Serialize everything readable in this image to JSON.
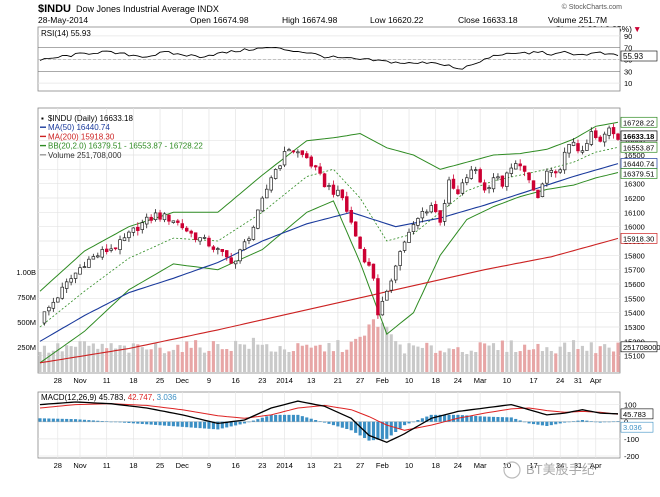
{
  "header": {
    "symbol": "$INDU",
    "name": "Dow Jones Industrial Average INDX",
    "watermark": "© StockCharts.com",
    "date": "28-May-2014",
    "open": "Open 16674.98",
    "high": "High 16674.98",
    "low": "Low 16620.22",
    "close": "Close 16633.18",
    "volume": "Volume 251.7M",
    "chg": "Chg -42.32 (-0.25%)",
    "chg_arrow": "▼"
  },
  "colors": {
    "up": "#222222",
    "down": "#cc0033",
    "ma50": "#1a3a9c",
    "ma200": "#cc2222",
    "bb": "#2e8b22",
    "macd_signal": "#dd2222",
    "hist": "#3b8fc4"
  },
  "chart_data": [
    {
      "type": "line",
      "title": "RSI(14) 55.93",
      "ylim": [
        0,
        100
      ],
      "ticks": [
        "90",
        "70",
        "50",
        "30",
        "10"
      ],
      "last_label": "55.93",
      "reference_lines": [
        30,
        70
      ],
      "x_range": [
        0,
        130
      ],
      "knots": [
        [
          0,
          48
        ],
        [
          5,
          55
        ],
        [
          10,
          60
        ],
        [
          14,
          63
        ],
        [
          20,
          58
        ],
        [
          24,
          55
        ],
        [
          28,
          62
        ],
        [
          32,
          58
        ],
        [
          36,
          55
        ],
        [
          40,
          60
        ],
        [
          44,
          64
        ],
        [
          48,
          68
        ],
        [
          52,
          70
        ],
        [
          56,
          66
        ],
        [
          60,
          62
        ],
        [
          64,
          55
        ],
        [
          68,
          52
        ],
        [
          72,
          50
        ],
        [
          76,
          48
        ],
        [
          80,
          45
        ],
        [
          84,
          43
        ],
        [
          88,
          46
        ],
        [
          92,
          40
        ],
        [
          94,
          32
        ],
        [
          96,
          38
        ],
        [
          98,
          42
        ],
        [
          100,
          50
        ],
        [
          102,
          56
        ],
        [
          104,
          60
        ],
        [
          106,
          58
        ],
        [
          108,
          62
        ],
        [
          110,
          60
        ],
        [
          112,
          64
        ],
        [
          114,
          60
        ],
        [
          116,
          58
        ],
        [
          118,
          62
        ],
        [
          120,
          60
        ],
        [
          122,
          58
        ],
        [
          124,
          60
        ],
        [
          126,
          61
        ],
        [
          128,
          58
        ],
        [
          130,
          56
        ]
      ]
    },
    {
      "type": "candlestick",
      "title": "$INDU (Daily) 16633.18",
      "ylim": [
        15000,
        16800
      ],
      "y_ticks": [
        15100,
        15200,
        15300,
        15400,
        15500,
        15600,
        15700,
        15800,
        15900,
        16000,
        16100,
        16200,
        16300,
        16400,
        16500,
        16600
      ],
      "y_tick_labels": [
        "15100",
        "15200",
        "15300",
        "15400",
        "15500",
        "15600",
        "15700",
        "15800",
        "15900",
        "16000",
        "16100",
        "16200",
        "16300",
        "16400",
        "16500",
        "16600"
      ],
      "x_range": [
        0,
        130
      ],
      "x_ticks": [
        [
          4,
          "28"
        ],
        [
          9,
          "Nov"
        ],
        [
          15,
          "11"
        ],
        [
          21,
          "18"
        ],
        [
          27,
          "25"
        ],
        [
          32,
          "Dec"
        ],
        [
          38,
          "9"
        ],
        [
          44,
          "16"
        ],
        [
          50,
          "23"
        ],
        [
          55,
          "2014"
        ],
        [
          61,
          "13"
        ],
        [
          67,
          "21"
        ],
        [
          72,
          "27"
        ],
        [
          77,
          "Feb"
        ],
        [
          83,
          "10"
        ],
        [
          89,
          "18"
        ],
        [
          94,
          "24"
        ],
        [
          99,
          "Mar"
        ],
        [
          105,
          "10"
        ],
        [
          111,
          "17"
        ],
        [
          117,
          "24"
        ],
        [
          121,
          "31"
        ],
        [
          125,
          "Apr"
        ]
      ],
      "legend": [
        {
          "label": "$INDU (Daily) 16633.18",
          "key": "up"
        },
        {
          "label": "MA(50) 16440.74",
          "key": "ma50"
        },
        {
          "label": "MA(200) 15918.30",
          "key": "ma200"
        },
        {
          "label": "BB(20,2.0) 16379.51 - 16553.87 - 16728.22",
          "key": "bb"
        },
        {
          "label": "Volume 251,708,000",
          "key": "vol"
        }
      ],
      "right_labels": [
        {
          "value": 16728.22,
          "text": "16728.22",
          "key": "bb"
        },
        {
          "value": 16633.18,
          "text": "16633.18",
          "key": "price"
        },
        {
          "value": 16553.87,
          "text": "16553.87",
          "key": "bb"
        },
        {
          "value": 16440.74,
          "text": "16440.74",
          "key": "ma50"
        },
        {
          "value": 16379.51,
          "text": "16379.51",
          "key": "bb"
        },
        {
          "value": 15918.3,
          "text": "15918.30",
          "key": "ma200"
        }
      ],
      "price_knots": [
        [
          0,
          15350
        ],
        [
          6,
          15600
        ],
        [
          10,
          15750
        ],
        [
          14,
          15820
        ],
        [
          18,
          15880
        ],
        [
          22,
          16000
        ],
        [
          26,
          16080
        ],
        [
          30,
          16050
        ],
        [
          34,
          15950
        ],
        [
          38,
          15880
        ],
        [
          42,
          15780
        ],
        [
          44,
          15760
        ],
        [
          48,
          16000
        ],
        [
          52,
          16350
        ],
        [
          56,
          16550
        ],
        [
          60,
          16480
        ],
        [
          64,
          16300
        ],
        [
          68,
          16200
        ],
        [
          72,
          15850
        ],
        [
          75,
          15650
        ],
        [
          76,
          15400
        ],
        [
          78,
          15520
        ],
        [
          80,
          15750
        ],
        [
          82,
          15900
        ],
        [
          86,
          16100
        ],
        [
          88,
          16150
        ],
        [
          90,
          16050
        ],
        [
          92,
          16300
        ],
        [
          94,
          16220
        ],
        [
          96,
          16350
        ],
        [
          98,
          16400
        ],
        [
          100,
          16250
        ],
        [
          102,
          16350
        ],
        [
          104,
          16300
        ],
        [
          106,
          16400
        ],
        [
          108,
          16450
        ],
        [
          110,
          16300
        ],
        [
          112,
          16200
        ],
        [
          114,
          16380
        ],
        [
          116,
          16350
        ],
        [
          118,
          16500
        ],
        [
          120,
          16600
        ],
        [
          122,
          16500
        ],
        [
          124,
          16650
        ],
        [
          126,
          16580
        ],
        [
          128,
          16700
        ],
        [
          130,
          16633
        ]
      ],
      "volume_left_labels": [
        "1.00B",
        "750M",
        "500M",
        "250M"
      ],
      "volume_axis_max": 1100,
      "volume_right_label": "251708000",
      "volume_millions_knots": [
        [
          0,
          220
        ],
        [
          10,
          260
        ],
        [
          20,
          230
        ],
        [
          30,
          250
        ],
        [
          40,
          260
        ],
        [
          48,
          280
        ],
        [
          52,
          240
        ],
        [
          60,
          230
        ],
        [
          68,
          260
        ],
        [
          72,
          300
        ],
        [
          75,
          480
        ],
        [
          76,
          560
        ],
        [
          78,
          380
        ],
        [
          82,
          240
        ],
        [
          90,
          230
        ],
        [
          100,
          240
        ],
        [
          106,
          260
        ],
        [
          110,
          240
        ],
        [
          118,
          250
        ],
        [
          122,
          260
        ],
        [
          126,
          240
        ],
        [
          130,
          250
        ]
      ],
      "ma50_knots": [
        [
          0,
          15200
        ],
        [
          10,
          15380
        ],
        [
          20,
          15540
        ],
        [
          30,
          15640
        ],
        [
          40,
          15750
        ],
        [
          50,
          15900
        ],
        [
          60,
          16020
        ],
        [
          70,
          16100
        ],
        [
          80,
          16000
        ],
        [
          90,
          16060
        ],
        [
          100,
          16150
        ],
        [
          110,
          16250
        ],
        [
          120,
          16350
        ],
        [
          130,
          16440
        ]
      ],
      "ma200_knots": [
        [
          0,
          15050
        ],
        [
          20,
          15150
        ],
        [
          40,
          15280
        ],
        [
          60,
          15420
        ],
        [
          80,
          15560
        ],
        [
          100,
          15700
        ],
        [
          115,
          15790
        ],
        [
          130,
          15918
        ]
      ],
      "bb_mid_knots": [
        [
          0,
          15300
        ],
        [
          10,
          15550
        ],
        [
          20,
          15780
        ],
        [
          30,
          15920
        ],
        [
          40,
          15900
        ],
        [
          50,
          16100
        ],
        [
          60,
          16350
        ],
        [
          66,
          16400
        ],
        [
          72,
          16200
        ],
        [
          78,
          15900
        ],
        [
          84,
          15950
        ],
        [
          90,
          16100
        ],
        [
          96,
          16250
        ],
        [
          102,
          16320
        ],
        [
          108,
          16360
        ],
        [
          114,
          16400
        ],
        [
          120,
          16450
        ],
        [
          125,
          16520
        ],
        [
          130,
          16553
        ]
      ],
      "bb_width_knots": [
        [
          0,
          250
        ],
        [
          10,
          280
        ],
        [
          20,
          220
        ],
        [
          30,
          180
        ],
        [
          40,
          200
        ],
        [
          50,
          260
        ],
        [
          60,
          250
        ],
        [
          66,
          220
        ],
        [
          72,
          450
        ],
        [
          78,
          650
        ],
        [
          84,
          550
        ],
        [
          90,
          300
        ],
        [
          96,
          200
        ],
        [
          102,
          180
        ],
        [
          108,
          150
        ],
        [
          114,
          140
        ],
        [
          120,
          160
        ],
        [
          125,
          180
        ],
        [
          130,
          175
        ]
      ]
    },
    {
      "type": "line",
      "title": "MACD(12,26,9) 45.783, 42.747, 3.036",
      "title_macd": "MACD(12,26,9) 45.783,",
      "title_signal": "42.747,",
      "title_hist": "3.036",
      "ylim": [
        -200,
        150
      ],
      "y_ticks": [
        100,
        0,
        -100,
        -200
      ],
      "y_tick_labels": [
        "100",
        "0",
        "-100",
        "-200"
      ],
      "right_labels": [
        {
          "value": 45.783,
          "text": "45.783",
          "key": "macd"
        },
        {
          "value": 3.036,
          "text": "3.036",
          "key": "hist"
        }
      ],
      "x_range": [
        0,
        130
      ],
      "macd_knots": [
        [
          0,
          100
        ],
        [
          8,
          115
        ],
        [
          16,
          105
        ],
        [
          24,
          80
        ],
        [
          32,
          40
        ],
        [
          40,
          -10
        ],
        [
          46,
          10
        ],
        [
          52,
          80
        ],
        [
          58,
          120
        ],
        [
          64,
          90
        ],
        [
          70,
          20
        ],
        [
          74,
          -80
        ],
        [
          78,
          -120
        ],
        [
          82,
          -70
        ],
        [
          88,
          20
        ],
        [
          94,
          60
        ],
        [
          100,
          80
        ],
        [
          106,
          100
        ],
        [
          110,
          70
        ],
        [
          114,
          40
        ],
        [
          118,
          50
        ],
        [
          122,
          70
        ],
        [
          126,
          50
        ],
        [
          130,
          46
        ]
      ],
      "signal_knots": [
        [
          0,
          80
        ],
        [
          8,
          100
        ],
        [
          16,
          105
        ],
        [
          24,
          95
        ],
        [
          32,
          70
        ],
        [
          40,
          35
        ],
        [
          46,
          20
        ],
        [
          52,
          40
        ],
        [
          58,
          80
        ],
        [
          64,
          95
        ],
        [
          70,
          70
        ],
        [
          74,
          30
        ],
        [
          78,
          -20
        ],
        [
          82,
          -50
        ],
        [
          88,
          -20
        ],
        [
          94,
          20
        ],
        [
          100,
          50
        ],
        [
          106,
          75
        ],
        [
          110,
          80
        ],
        [
          114,
          65
        ],
        [
          118,
          55
        ],
        [
          122,
          60
        ],
        [
          126,
          55
        ],
        [
          130,
          43
        ]
      ]
    }
  ],
  "footer_watermark": "BT美股手纪"
}
